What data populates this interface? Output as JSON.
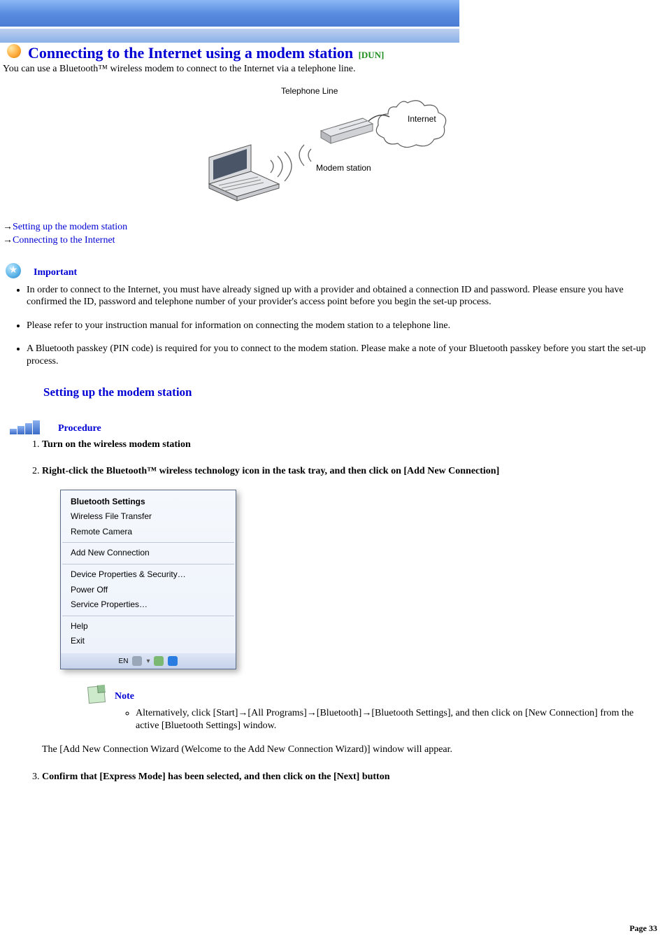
{
  "header": {
    "title": "Connecting to the Internet using a modem station",
    "subtitle": "[DUN]",
    "intro": "You can use a Bluetooth™ wireless modem to connect to the Internet via a telephone line."
  },
  "diagram": {
    "labels": {
      "telephone_line": "Telephone Line",
      "internet": "Internet",
      "modem_station": "Modem station"
    },
    "colors": {
      "laptop_body": "#d6d8dc",
      "laptop_dark": "#6e7077",
      "modem_body": "#e6e7ea",
      "modem_shadow": "#b8bac0",
      "cloud_stroke": "#5a5a5a",
      "line_stroke": "#3a3a3a"
    }
  },
  "quick_links": {
    "arrow": "→",
    "items": [
      "Setting up the modem station",
      "Connecting to the Internet"
    ]
  },
  "important": {
    "label": "Important",
    "items": [
      "In order to connect to the Internet, you must have already signed up with a provider and obtained a connection ID and password. Please ensure you have confirmed the ID, password and telephone number of your provider's access point before you begin the set-up process.",
      "Please refer to your instruction manual for information on connecting the modem station to a telephone line.",
      "A Bluetooth passkey (PIN code) is required for you to connect to the modem station. Please make a note of your Bluetooth passkey before you start the set-up process."
    ]
  },
  "section_title": "Setting up the modem station",
  "procedure": {
    "label": "Procedure",
    "steps": [
      "Turn on the wireless modem station",
      "Right-click the Bluetooth™ wireless technology icon in the task tray, and then click on [Add New Connection]"
    ],
    "step3": "Confirm that [Express Mode] has been selected, and then click on the [Next] button"
  },
  "menu": {
    "groups": [
      {
        "items": [
          {
            "text": "Bluetooth Settings",
            "bold": true
          },
          {
            "text": "Wireless File Transfer"
          },
          {
            "text": "Remote Camera"
          }
        ]
      },
      {
        "items": [
          {
            "text": "Add New Connection"
          }
        ]
      },
      {
        "items": [
          {
            "text": "Device Properties & Security…"
          },
          {
            "text": "Power Off"
          },
          {
            "text": "Service Properties…"
          }
        ]
      },
      {
        "items": [
          {
            "text": "Help"
          },
          {
            "text": "Exit"
          }
        ]
      }
    ],
    "tray_text": "EN",
    "tray_icons": [
      {
        "bg": "#9aa7b8"
      },
      {
        "bg": "#4a6aa5"
      },
      {
        "bg": "#7bb972"
      },
      {
        "bg": "#2a7de0"
      }
    ]
  },
  "note": {
    "label": "Note",
    "text": "Alternatively, click [Start]→[All Programs]→[Bluetooth]→[Bluetooth Settings], and then click on [New Connection] from the active [Bluetooth Settings] window."
  },
  "after_note": "The [Add New Connection Wizard (Welcome to the Add New Connection Wizard)] window will appear.",
  "footer": {
    "page_label": "Page 33"
  }
}
